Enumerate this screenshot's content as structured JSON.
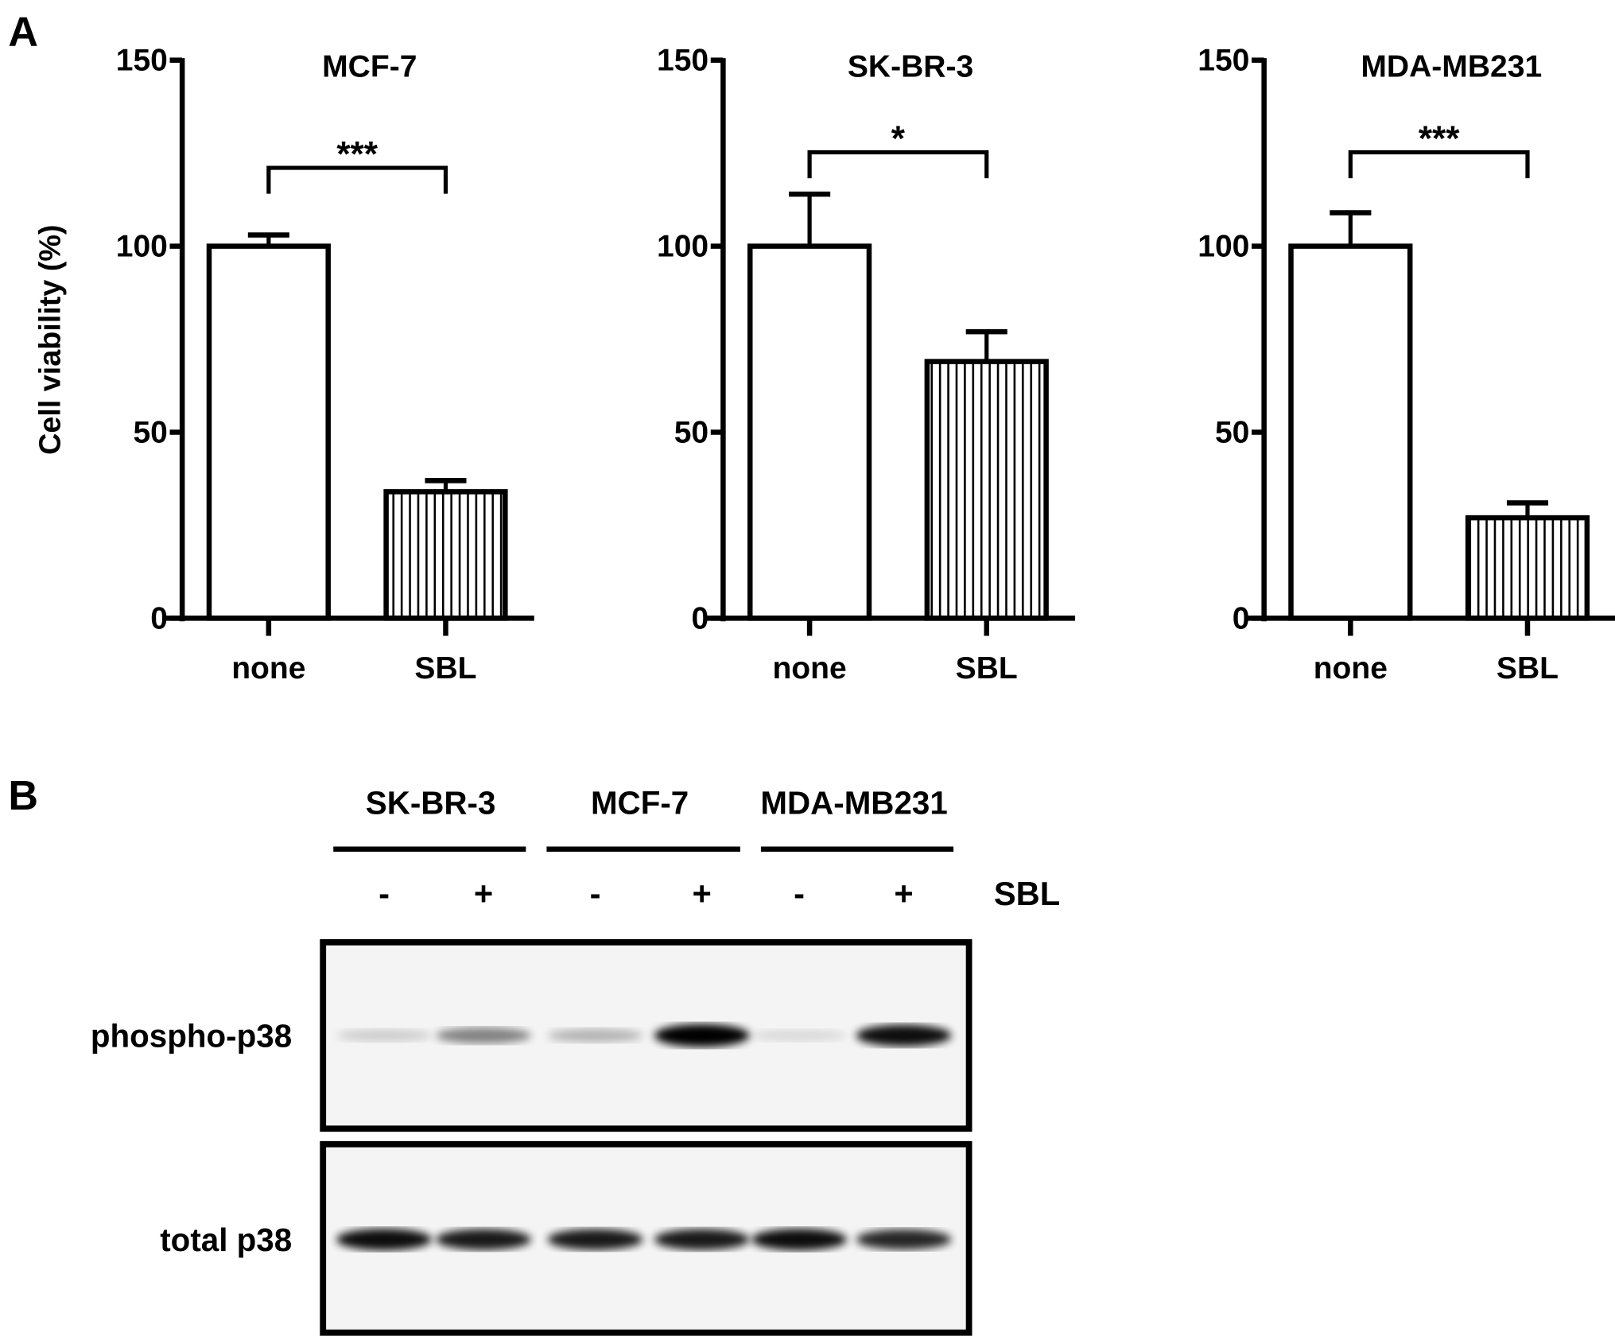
{
  "panel_labels": {
    "a": "A",
    "b": "B"
  },
  "chart_data": [
    {
      "type": "bar",
      "title": "MCF-7",
      "ylabel": "Cell viability (%)",
      "categories": [
        "none",
        "SBL"
      ],
      "values": [
        100,
        34
      ],
      "error_upper": [
        103,
        37
      ],
      "ylim": [
        0,
        150
      ],
      "yticks": [
        "0",
        "50",
        "100",
        "150"
      ],
      "significance": "***",
      "bar_fills": [
        "open",
        "vertical-hatch"
      ]
    },
    {
      "type": "bar",
      "title": "SK-BR-3",
      "categories": [
        "none",
        "SBL"
      ],
      "values": [
        100,
        69
      ],
      "error_upper": [
        114,
        77
      ],
      "ylim": [
        0,
        150
      ],
      "yticks": [
        "0",
        "50",
        "100",
        "150"
      ],
      "significance": "*",
      "bar_fills": [
        "open",
        "vertical-hatch"
      ]
    },
    {
      "type": "bar",
      "title": "MDA-MB231",
      "categories": [
        "none",
        "SBL"
      ],
      "values": [
        100,
        27
      ],
      "error_upper": [
        109,
        31
      ],
      "ylim": [
        0,
        150
      ],
      "yticks": [
        "0",
        "50",
        "100",
        "150"
      ],
      "significance": "***",
      "bar_fills": [
        "open",
        "vertical-hatch"
      ]
    }
  ],
  "blot": {
    "groups": [
      "SK-BR-3",
      "MCF-7",
      "MDA-MB231"
    ],
    "lanes": [
      "-",
      "+",
      "-",
      "+",
      "-",
      "+"
    ],
    "treatment_label": "SBL",
    "rows": [
      {
        "label": "phospho-p38",
        "band_intensity": [
          0.15,
          0.45,
          0.25,
          1.0,
          0.1,
          0.9
        ]
      },
      {
        "label": "total p38",
        "band_intensity": [
          0.9,
          0.85,
          0.85,
          0.85,
          0.9,
          0.8
        ]
      }
    ]
  }
}
